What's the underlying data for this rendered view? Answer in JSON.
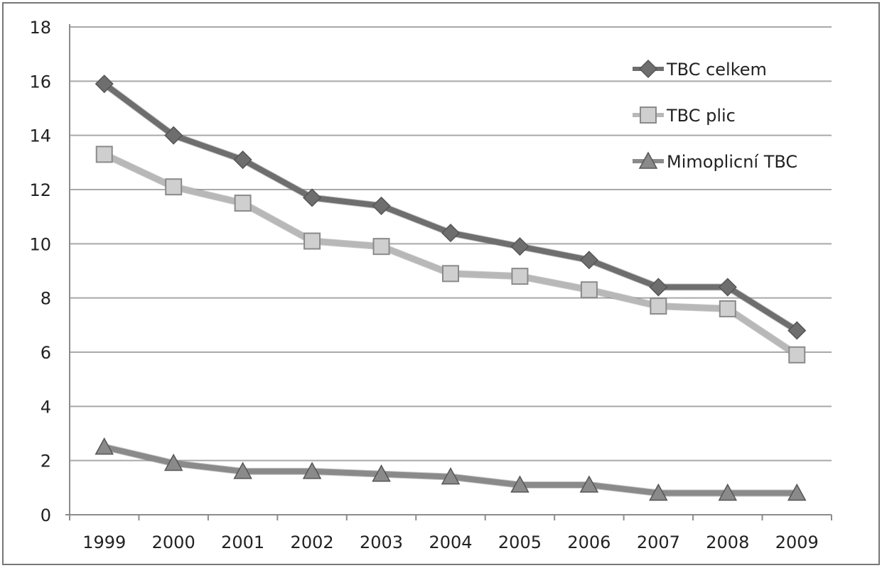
{
  "chart_data": {
    "type": "line",
    "title": "",
    "xlabel": "",
    "ylabel": "",
    "categories": [
      "1999",
      "2000",
      "2001",
      "2002",
      "2003",
      "2004",
      "2005",
      "2006",
      "2007",
      "2008",
      "2009"
    ],
    "ylim": [
      0,
      18
    ],
    "yticks": [
      0,
      2,
      4,
      6,
      8,
      10,
      12,
      14,
      16,
      18
    ],
    "grid": "horizontal",
    "legend_position": "top-right",
    "series": [
      {
        "name": "TBC celkem",
        "marker": "diamond",
        "color": "#6e6e6e",
        "values": [
          15.9,
          14.0,
          13.1,
          11.7,
          11.4,
          10.4,
          9.9,
          9.4,
          8.4,
          8.4,
          6.8
        ]
      },
      {
        "name": "TBC plic",
        "marker": "square",
        "color": "#b8b8b8",
        "values": [
          13.3,
          12.1,
          11.5,
          10.1,
          9.9,
          8.9,
          8.8,
          8.3,
          7.7,
          7.6,
          5.9
        ]
      },
      {
        "name": "Mimoplicní TBC",
        "marker": "triangle",
        "color": "#8a8a8a",
        "values": [
          2.5,
          1.9,
          1.6,
          1.6,
          1.5,
          1.4,
          1.1,
          1.1,
          0.8,
          0.8,
          0.8
        ]
      }
    ]
  }
}
